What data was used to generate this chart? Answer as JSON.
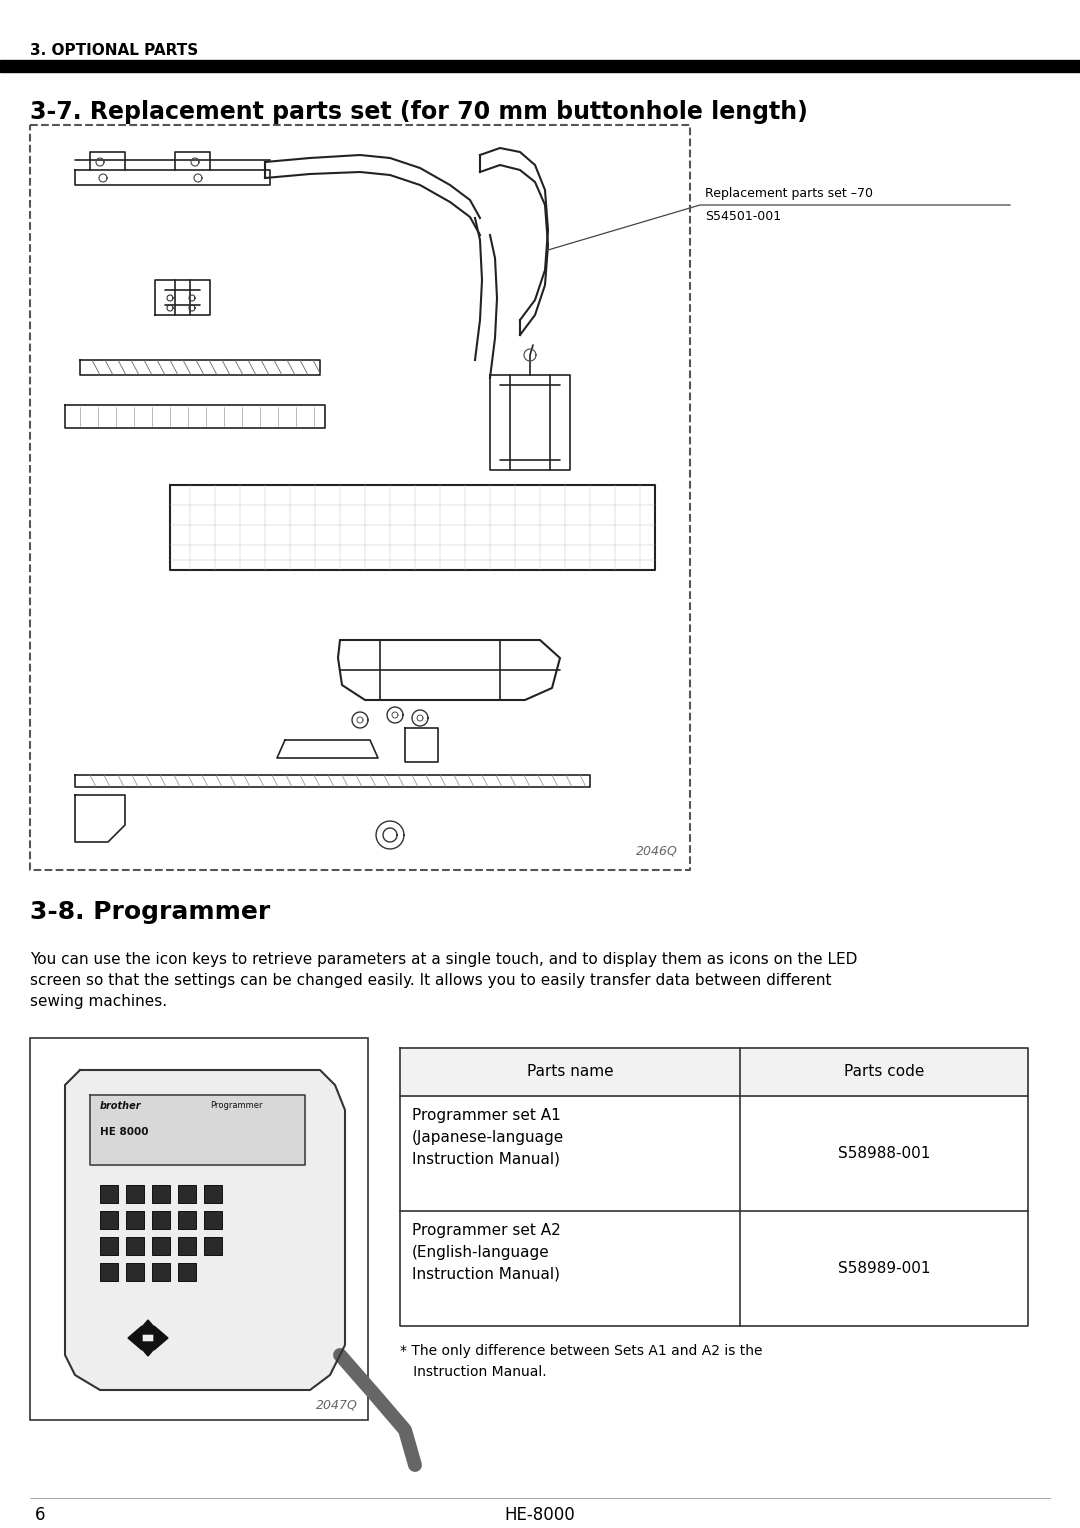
{
  "header_section_label": "3. OPTIONAL PARTS",
  "section_title_37": "3-7. Replacement parts set (for 70 mm buttonhole length)",
  "annotation_label": "Replacement parts set –70",
  "annotation_code": "S54501-001",
  "figure1_code": "2046Q",
  "section_title_38": "3-8. Programmer",
  "programmer_text": "You can use the icon keys to retrieve parameters at a single touch, and to display them as icons on the LED\nscreen so that the settings can be changed easily. It allows you to easily transfer data between different\nsewing machines.",
  "figure2_code": "2047Q",
  "table_headers": [
    "Parts name",
    "Parts code"
  ],
  "table_rows": [
    [
      "Programmer set A1\n(Japanese-language\nInstruction Manual)",
      "S58988-001"
    ],
    [
      "Programmer set A2\n(English-language\nInstruction Manual)",
      "S58989-001"
    ]
  ],
  "footnote": "* The only difference between Sets A1 and A2 is the\n   Instruction Manual.",
  "footer_page": "6",
  "footer_model": "HE-8000",
  "bg_color": "#ffffff",
  "text_color": "#000000",
  "header_bar_color": "#000000"
}
